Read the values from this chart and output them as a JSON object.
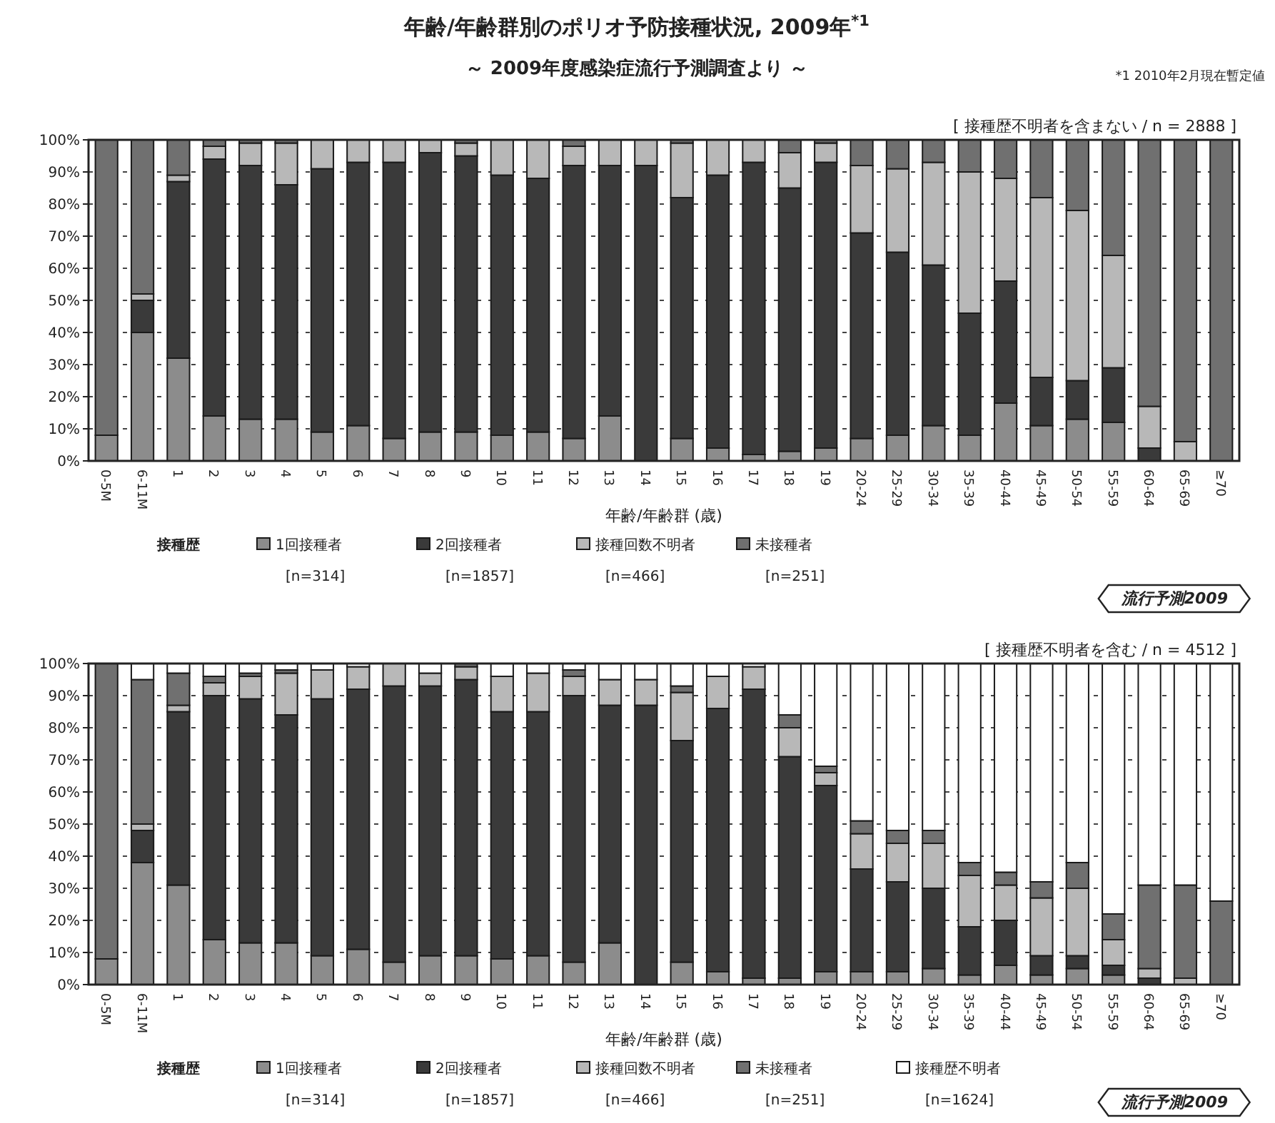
{
  "chart_data": [
    {
      "type": "bar",
      "title": "年齢/年齢群別のポリオ予防接種状況, 2009年$^{*1}$",
      "subtitle": "～ 2009年度感染症流行予測調査より ～",
      "xlabel": "年齢/年齢群 (歳)",
      "legend_title": "接種歴",
      "stacked": true,
      "grid": "y",
      "legend": "bottom",
      "ylim": [
        0,
        100
      ],
      "yticks": [
        {
          "value": 0,
          "label": "0%"
        },
        {
          "value": 10,
          "label": "10%"
        },
        {
          "value": 20,
          "label": "20%"
        },
        {
          "value": 30,
          "label": "30%"
        },
        {
          "value": 40,
          "label": "40%"
        },
        {
          "value": 50,
          "label": "50%"
        },
        {
          "value": 60,
          "label": "60%"
        },
        {
          "value": 70,
          "label": "70%"
        },
        {
          "value": 80,
          "label": "80%"
        },
        {
          "value": 90,
          "label": "90%"
        },
        {
          "value": 100,
          "label": "100%"
        }
      ],
      "categories": [
        "0-5M",
        "6-11M",
        "1",
        "2",
        "3",
        "4",
        "5",
        "6",
        "7",
        "8",
        "9",
        "10",
        "11",
        "12",
        "13",
        "14",
        "15",
        "16",
        "17",
        "18",
        "19",
        "20-24",
        "25-29",
        "30-34",
        "35-39",
        "40-44",
        "45-49",
        "50-54",
        "55-59",
        "60-64",
        "65-69",
        "≥70"
      ],
      "series": [
        {
          "name": "1回接種者",
          "color": "#8c8c8c",
          "values": [
            8,
            40,
            32,
            14,
            13,
            13,
            9,
            11,
            7,
            9,
            9,
            8,
            9,
            7,
            14,
            0,
            7,
            4,
            2,
            3,
            4,
            7,
            8,
            11,
            8,
            18,
            11,
            13,
            12,
            0,
            0,
            0
          ]
        },
        {
          "name": "2回接種者",
          "color": "#3a3a3a",
          "values": [
            0,
            10,
            55,
            80,
            79,
            73,
            82,
            82,
            86,
            87,
            86,
            81,
            79,
            85,
            78,
            92,
            75,
            85,
            91,
            82,
            89,
            64,
            57,
            50,
            38,
            38,
            15,
            12,
            17,
            4,
            null,
            0
          ]
        },
        {
          "name": "接種回数不明者",
          "color": "#b8b8b8",
          "values": [
            0,
            2,
            2,
            4,
            7,
            13,
            9,
            7,
            7,
            4,
            4,
            11,
            12,
            6,
            8,
            8,
            17,
            11,
            7,
            11,
            6,
            21,
            26,
            32,
            44,
            32,
            56,
            53,
            35,
            13,
            6,
            0
          ]
        },
        {
          "name": "未接種者",
          "color": "#707070",
          "values": [
            92,
            48,
            11,
            2,
            1,
            1,
            0,
            0,
            0,
            0,
            1,
            0,
            0,
            2,
            0,
            0,
            1,
            0,
            0,
            4,
            1,
            8,
            9,
            7,
            10,
            12,
            18,
            22,
            36,
            83,
            94,
            100
          ]
        }
      ],
      "annotations": [
        "[n=314]",
        "[n=1857]",
        "[n=466]",
        "[n=251]",
        "[ 接種歴不明者を含まない / n = 2888 ]",
        "流行予測2009",
        "*1 2010年2月現在暫定値"
      ]
    },
    {
      "type": "bar",
      "xlabel": "年齢/年齢群 (歳)",
      "legend_title": "接種歴",
      "stacked": true,
      "grid": "y",
      "legend": "bottom",
      "ylim": [
        0,
        100
      ],
      "yticks": [
        {
          "value": 0,
          "label": "0%"
        },
        {
          "value": 10,
          "label": "10%"
        },
        {
          "value": 20,
          "label": "20%"
        },
        {
          "value": 30,
          "label": "30%"
        },
        {
          "value": 40,
          "label": "40%"
        },
        {
          "value": 50,
          "label": "50%"
        },
        {
          "value": 60,
          "label": "60%"
        },
        {
          "value": 70,
          "label": "70%"
        },
        {
          "value": 80,
          "label": "80%"
        },
        {
          "value": 90,
          "label": "90%"
        },
        {
          "value": 100,
          "label": "100%"
        }
      ],
      "categories": [
        "0-5M",
        "6-11M",
        "1",
        "2",
        "3",
        "4",
        "5",
        "6",
        "7",
        "8",
        "9",
        "10",
        "11",
        "12",
        "13",
        "14",
        "15",
        "16",
        "17",
        "18",
        "19",
        "20-24",
        "25-29",
        "30-34",
        "35-39",
        "40-44",
        "45-49",
        "50-54",
        "55-59",
        "60-64",
        "65-69",
        "≥70"
      ],
      "series": [
        {
          "name": "1回接種者",
          "color": "#8c8c8c",
          "values": [
            8,
            38,
            31,
            14,
            13,
            13,
            9,
            11,
            7,
            9,
            9,
            8,
            9,
            7,
            13,
            0,
            7,
            4,
            2,
            2,
            4,
            4,
            4,
            5,
            3,
            6,
            3,
            5,
            3,
            0,
            0,
            0
          ]
        },
        {
          "name": "2回接種者",
          "color": "#3a3a3a",
          "values": [
            0,
            10,
            54,
            76,
            76,
            71,
            80,
            81,
            86,
            84,
            86,
            77,
            76,
            83,
            74,
            87,
            69,
            82,
            90,
            69,
            58,
            32,
            28,
            25,
            15,
            14,
            6,
            4,
            3,
            2,
            null,
            0
          ]
        },
        {
          "name": "接種回数不明者",
          "color": "#b8b8b8",
          "values": [
            0,
            2,
            2,
            4,
            7,
            13,
            9,
            7,
            7,
            4,
            4,
            11,
            12,
            6,
            8,
            8,
            15,
            10,
            7,
            9,
            4,
            11,
            12,
            14,
            16,
            11,
            18,
            21,
            8,
            3,
            2,
            0
          ]
        },
        {
          "name": "未接種者",
          "color": "#707070",
          "values": [
            92,
            45,
            10,
            2,
            1,
            1,
            0,
            0,
            0,
            0,
            1,
            0,
            0,
            2,
            0,
            0,
            2,
            0,
            0,
            4,
            2,
            4,
            4,
            4,
            4,
            4,
            5,
            8,
            8,
            26,
            29,
            26
          ]
        },
        {
          "name": "接種歴不明者",
          "color": "#ffffff",
          "values": [
            0,
            5,
            3,
            4,
            3,
            2,
            2,
            1,
            0,
            3,
            0,
            4,
            3,
            2,
            5,
            5,
            7,
            4,
            1,
            16,
            32,
            49,
            52,
            52,
            62,
            65,
            68,
            62,
            78,
            69,
            69,
            74
          ]
        }
      ],
      "annotations": [
        "[n=314]",
        "[n=1857]",
        "[n=466]",
        "[n=251]",
        "[n=1624]",
        "[ 接種歴不明者を含む / n = 4512 ]",
        "流行予測2009"
      ]
    }
  ]
}
